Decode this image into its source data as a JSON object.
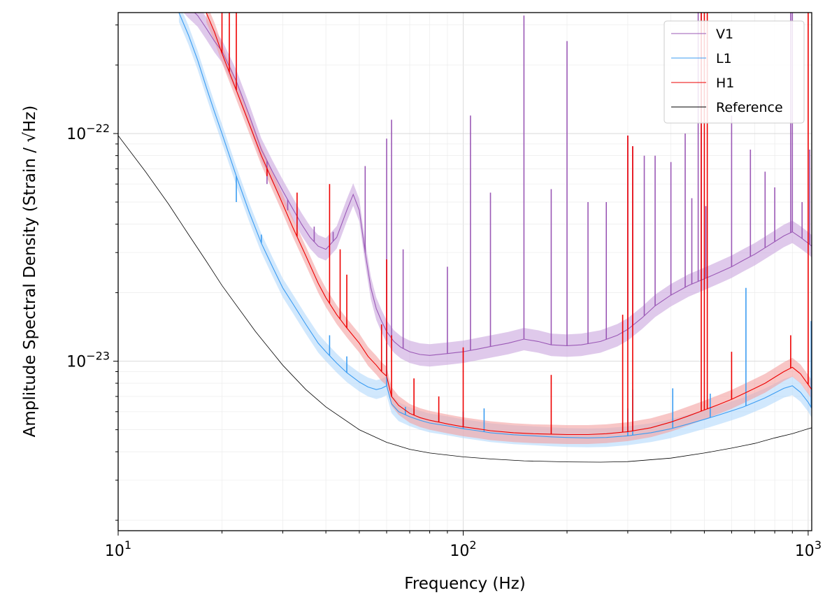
{
  "chart_data": {
    "type": "line",
    "title": "",
    "xlabel": "Frequency (Hz)",
    "ylabel": "Amplitude Spectral Density (Strain / √Hz)",
    "x_scale": "log",
    "y_scale": "log",
    "xlim": [
      10,
      1024
    ],
    "ylim": [
      1.8e-24,
      3.4e-22
    ],
    "grid": "major and minor, light gray",
    "legend_position": "top-right",
    "x_ticks": [
      {
        "value": 10,
        "base": "10",
        "exp": "1"
      },
      {
        "value": 100,
        "base": "10",
        "exp": "2"
      },
      {
        "value": 1000,
        "base": "10",
        "exp": "3"
      }
    ],
    "y_ticks": [
      {
        "value": 1e-23,
        "base": "10",
        "exp": "−23"
      },
      {
        "value": 1e-22,
        "base": "10",
        "exp": "−22"
      }
    ],
    "series": [
      {
        "name": "V1",
        "color": "#9b59b6",
        "band_color": "#c9a5dd",
        "x": [
          15,
          16,
          17,
          18,
          19,
          20,
          22,
          24,
          26,
          28,
          30,
          32,
          34,
          36,
          38,
          40,
          43,
          46,
          48,
          50,
          52,
          54,
          56,
          58,
          60,
          63,
          66,
          70,
          75,
          80,
          90,
          100,
          110,
          120,
          135,
          150,
          165,
          180,
          200,
          220,
          250,
          280,
          300,
          330,
          360,
          400,
          450,
          500,
          550,
          600,
          650,
          700,
          750,
          800,
          850,
          900,
          950,
          1000,
          1024
        ],
        "y": [
          4e-22,
          3.6e-22,
          3.3e-22,
          2.9e-22,
          2.55e-22,
          2.3e-22,
          1.7e-22,
          1.2e-22,
          8.5e-23,
          6.8e-23,
          5.6e-23,
          4.7e-23,
          4e-23,
          3.5e-23,
          3.2e-23,
          3.1e-23,
          3.5e-23,
          4.6e-23,
          5.4e-23,
          4.6e-23,
          3e-23,
          2.1e-23,
          1.7e-23,
          1.5e-23,
          1.35e-23,
          1.22e-23,
          1.15e-23,
          1.1e-23,
          1.07e-23,
          1.06e-23,
          1.08e-23,
          1.1e-23,
          1.13e-23,
          1.16e-23,
          1.2e-23,
          1.25e-23,
          1.22e-23,
          1.18e-23,
          1.17e-23,
          1.18e-23,
          1.22e-23,
          1.3e-23,
          1.38e-23,
          1.55e-23,
          1.75e-23,
          1.95e-23,
          2.15e-23,
          2.3e-23,
          2.45e-23,
          2.6e-23,
          2.78e-23,
          2.95e-23,
          3.15e-23,
          3.35e-23,
          3.55e-23,
          3.7e-23,
          3.5e-23,
          3.3e-23,
          3.2e-23
        ],
        "band_factor": 1.12,
        "peaks": [
          [
            27,
            6e-23
          ],
          [
            31,
            4.6e-23
          ],
          [
            37,
            3.9e-23
          ],
          [
            42,
            3.7e-23
          ],
          [
            52,
            7.2e-23
          ],
          [
            60,
            9.5e-23
          ],
          [
            62,
            1.15e-22
          ],
          [
            67,
            3.1e-23
          ],
          [
            90,
            2.6e-23
          ],
          [
            105,
            1.2e-22
          ],
          [
            120,
            5.5e-23
          ],
          [
            150,
            3.3e-22
          ],
          [
            180,
            5.7e-23
          ],
          [
            200,
            2.55e-22
          ],
          [
            230,
            5e-23
          ],
          [
            260,
            5e-23
          ],
          [
            300,
            9.8e-23
          ],
          [
            310,
            8.8e-23
          ],
          [
            335,
            8e-23
          ],
          [
            360,
            8e-23
          ],
          [
            400,
            7.5e-23
          ],
          [
            440,
            1e-22
          ],
          [
            460,
            5.2e-23
          ],
          [
            480,
            3.5e-22
          ],
          [
            490,
            3.5e-22
          ],
          [
            505,
            4.8e-23
          ],
          [
            600,
            1.2e-22
          ],
          [
            680,
            8.5e-23
          ],
          [
            750,
            6.8e-23
          ],
          [
            800,
            5.8e-23
          ],
          [
            890,
            3.5e-22
          ],
          [
            900,
            3.5e-22
          ],
          [
            960,
            5e-23
          ],
          [
            1010,
            8.5e-23
          ]
        ]
      },
      {
        "name": "L1",
        "color": "#3b9cf2",
        "band_color": "#b3d9fb",
        "x": [
          15,
          16,
          17,
          18,
          19,
          20,
          22,
          24,
          26,
          28,
          30,
          32,
          35,
          38,
          40,
          43,
          46,
          50,
          53,
          56,
          58,
          60,
          62,
          65,
          70,
          75,
          80,
          90,
          100,
          110,
          120,
          140,
          160,
          180,
          200,
          230,
          260,
          300,
          350,
          400,
          450,
          500,
          550,
          600,
          650,
          700,
          750,
          800,
          850,
          900,
          950,
          1000,
          1024
        ],
        "y": [
          3.4e-22,
          2.7e-22,
          2.1e-22,
          1.6e-22,
          1.25e-22,
          1e-22,
          6.5e-23,
          4.5e-23,
          3.3e-23,
          2.6e-23,
          2.1e-23,
          1.8e-23,
          1.45e-23,
          1.2e-23,
          1.1e-23,
          9.8e-24,
          8.9e-24,
          8.1e-24,
          7.7e-24,
          7.5e-24,
          7.6e-24,
          7.8e-24,
          6.5e-24,
          6e-24,
          5.7e-24,
          5.5e-24,
          5.35e-24,
          5.2e-24,
          5.05e-24,
          4.95e-24,
          4.85e-24,
          4.75e-24,
          4.7e-24,
          4.65e-24,
          4.62e-24,
          4.6e-24,
          4.62e-24,
          4.7e-24,
          4.85e-24,
          5.05e-24,
          5.3e-24,
          5.55e-24,
          5.8e-24,
          6.05e-24,
          6.3e-24,
          6.6e-24,
          6.9e-24,
          7.25e-24,
          7.6e-24,
          7.8e-24,
          7.3e-24,
          6.6e-24,
          6.2e-24
        ],
        "band_factor": 1.1,
        "peaks": [
          [
            22,
            5e-23
          ],
          [
            26,
            3.6e-23
          ],
          [
            41,
            1.3e-23
          ],
          [
            46,
            1.05e-23
          ],
          [
            60,
            1.2e-23
          ],
          [
            68,
            6.3e-24
          ],
          [
            100,
            6e-24
          ],
          [
            115,
            6.2e-24
          ],
          [
            300,
            6.2e-24
          ],
          [
            310,
            7.5e-24
          ],
          [
            405,
            7.6e-24
          ],
          [
            520,
            7.2e-24
          ],
          [
            660,
            2.1e-23
          ],
          [
            1020,
            1.5e-23
          ]
        ]
      },
      {
        "name": "H1",
        "color": "#ee0000",
        "band_color": "#f4a0a0",
        "x": [
          18,
          19,
          20,
          22,
          24,
          26,
          28,
          30,
          32,
          35,
          38,
          40,
          43,
          46,
          50,
          53,
          56,
          58,
          60,
          62,
          65,
          70,
          75,
          80,
          90,
          100,
          110,
          120,
          140,
          160,
          180,
          200,
          230,
          260,
          300,
          350,
          400,
          450,
          500,
          550,
          600,
          650,
          700,
          750,
          800,
          850,
          900,
          950,
          1000,
          1024
        ],
        "y": [
          3.4e-22,
          2.8e-22,
          2.25e-22,
          1.55e-22,
          1.1e-22,
          8e-23,
          6.2e-23,
          4.9e-23,
          3.9e-23,
          2.9e-23,
          2.2e-23,
          1.9e-23,
          1.6e-23,
          1.4e-23,
          1.2e-23,
          1.05e-23,
          9.6e-24,
          9e-24,
          8.6e-24,
          7e-24,
          6.4e-24,
          5.9e-24,
          5.65e-24,
          5.5e-24,
          5.3e-24,
          5.15e-24,
          5.05e-24,
          4.95e-24,
          4.85e-24,
          4.8e-24,
          4.78e-24,
          4.76e-24,
          4.76e-24,
          4.8e-24,
          4.9e-24,
          5.1e-24,
          5.4e-24,
          5.75e-24,
          6.1e-24,
          6.45e-24,
          6.8e-24,
          7.2e-24,
          7.6e-24,
          8e-24,
          8.5e-24,
          9e-24,
          9.4e-24,
          8.8e-24,
          7.9e-24,
          7.5e-24
        ],
        "band_factor": 1.1,
        "peaks": [
          [
            20,
            3.4e-22
          ],
          [
            21,
            3.4e-22
          ],
          [
            22,
            3.4e-22
          ],
          [
            27,
            6.5e-23
          ],
          [
            33,
            5.5e-23
          ],
          [
            38,
            2.2e-23
          ],
          [
            41,
            6e-23
          ],
          [
            44,
            3.1e-23
          ],
          [
            46,
            2.4e-23
          ],
          [
            58,
            1.45e-23
          ],
          [
            60,
            2.8e-23
          ],
          [
            62,
            1.3e-23
          ],
          [
            72,
            8.4e-24
          ],
          [
            85,
            7e-24
          ],
          [
            100,
            1.15e-23
          ],
          [
            180,
            8.7e-24
          ],
          [
            290,
            1.6e-23
          ],
          [
            300,
            9.8e-23
          ],
          [
            310,
            8.8e-23
          ],
          [
            490,
            3.4e-22
          ],
          [
            500,
            3.4e-22
          ],
          [
            510,
            3.4e-22
          ],
          [
            600,
            1.1e-23
          ],
          [
            890,
            1.3e-23
          ],
          [
            1000,
            3.4e-22
          ]
        ]
      },
      {
        "name": "Reference",
        "color": "#000000",
        "band_color": "",
        "x": [
          10,
          12,
          14,
          16,
          18,
          20,
          25,
          30,
          35,
          40,
          50,
          60,
          70,
          80,
          100,
          120,
          150,
          200,
          250,
          300,
          400,
          500,
          600,
          700,
          800,
          900,
          1000,
          1024
        ],
        "y": [
          9.8e-23,
          6.8e-23,
          4.9e-23,
          3.6e-23,
          2.75e-23,
          2.15e-23,
          1.35e-23,
          9.6e-24,
          7.5e-24,
          6.3e-24,
          5e-24,
          4.4e-24,
          4.1e-24,
          3.95e-24,
          3.8e-24,
          3.72e-24,
          3.65e-24,
          3.61e-24,
          3.6e-24,
          3.62e-24,
          3.75e-24,
          3.95e-24,
          4.15e-24,
          4.35e-24,
          4.6e-24,
          4.8e-24,
          5.05e-24,
          5.1e-24
        ],
        "band_factor": 1,
        "peaks": []
      }
    ]
  }
}
